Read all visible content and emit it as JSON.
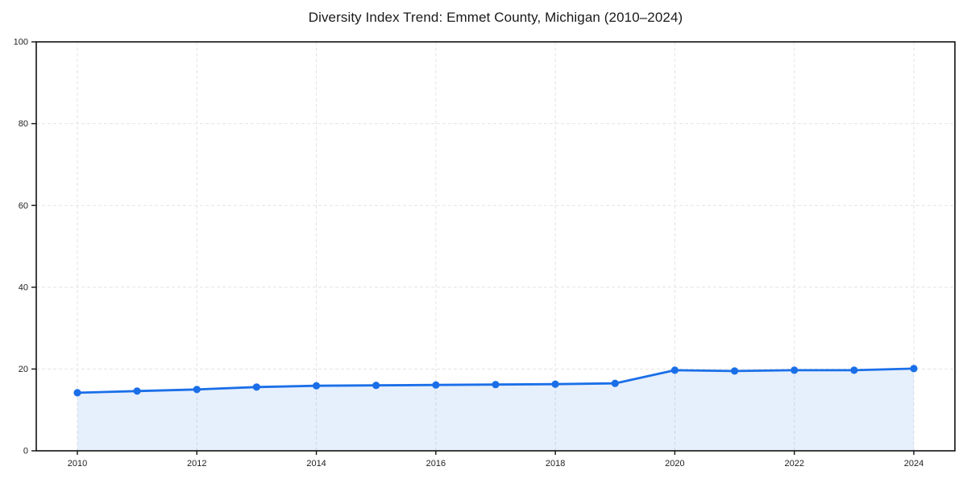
{
  "chart": {
    "colors": {
      "line": "#1a6fe8",
      "marker": "#1a6fe8",
      "area_fill": "rgba(26,111,232,0.11)",
      "grid": "#e3e3e3",
      "axis": "#111111",
      "text": "#1f1f1f"
    }
  },
  "chart_data": {
    "type": "line",
    "title": "Diversity Index Trend: Emmet County, Michigan (2010–2024)",
    "x": [
      2010,
      2011,
      2012,
      2013,
      2014,
      2015,
      2016,
      2017,
      2018,
      2019,
      2020,
      2021,
      2022,
      2023,
      2024
    ],
    "values": [
      14.2,
      14.6,
      15.0,
      15.6,
      15.9,
      16.0,
      16.1,
      16.2,
      16.3,
      16.5,
      19.7,
      19.5,
      19.7,
      19.7,
      20.1
    ],
    "series_name": "Diversity Index",
    "xlabel": "",
    "ylabel": "",
    "ylim": [
      0,
      100
    ],
    "yticks": [
      0,
      20,
      40,
      60,
      80,
      100
    ],
    "xticks": [
      2010,
      2012,
      2014,
      2016,
      2018,
      2020,
      2022,
      2024
    ],
    "grid": true,
    "grid_style": "dashed",
    "legend": null,
    "marker": "circle",
    "area_fill": true,
    "plot_border": true
  }
}
